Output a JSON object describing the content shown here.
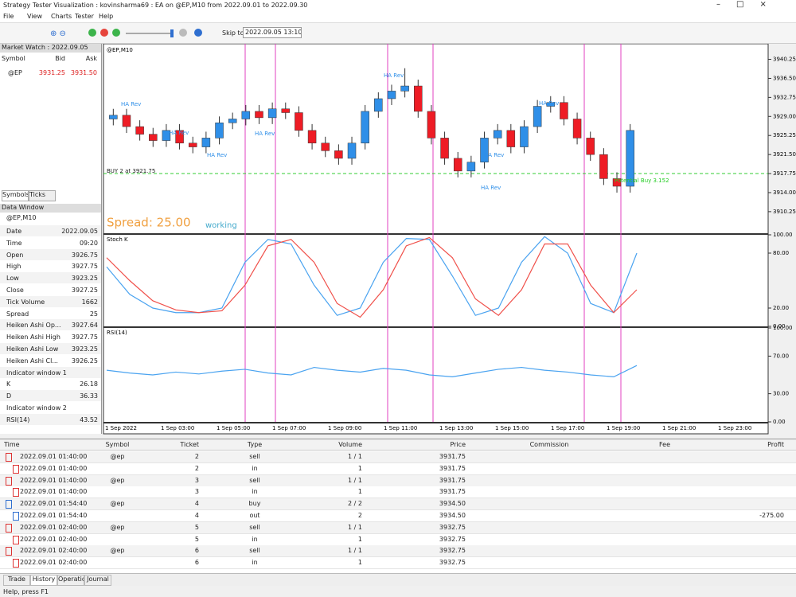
{
  "window": {
    "title": "Strategy Tester Visualization : kovinsharma69 : EA on @EP,M10 from 2022.09.01 to 2022.09.30",
    "menu": [
      "File",
      "View",
      "Charts",
      "Tester",
      "Help"
    ],
    "toolbar": {
      "skip_label": "Skip to",
      "skip_date": "2022.09.05 13:10"
    }
  },
  "market_watch": {
    "title": "Market Watch : 2022.09.05",
    "columns": [
      "Symbol",
      "Bid",
      "Ask"
    ],
    "rows": [
      [
        "@EP",
        "3931.25",
        "3931.50"
      ]
    ],
    "tabs": [
      "Symbols",
      "Ticks"
    ]
  },
  "data_window": {
    "title": "Data Window",
    "symbol": "@EP,M10",
    "rows": [
      [
        "Date",
        "2022.09.05"
      ],
      [
        "Time",
        "09:20"
      ],
      [
        "Open",
        "3926.75"
      ],
      [
        "High",
        "3927.75"
      ],
      [
        "Low",
        "3923.25"
      ],
      [
        "Close",
        "3927.25"
      ],
      [
        "Tick Volume",
        "1662"
      ],
      [
        "Spread",
        "25"
      ],
      [
        "Heiken Ashi Op...",
        "3927.64"
      ],
      [
        "Heiken Ashi High",
        "3927.75"
      ],
      [
        "Heiken Ashi Low",
        "3923.25"
      ],
      [
        "Heiken Ashi Cl...",
        "3926.25"
      ],
      [
        "Indicator window 1",
        null
      ],
      [
        "K",
        "26.18"
      ],
      [
        "D",
        "36.33"
      ],
      [
        "Indicator window 2",
        null
      ],
      [
        "RSI(14)",
        "43.52"
      ]
    ]
  },
  "chart_data": [
    {
      "type": "candlestick",
      "title": "@EP,M10",
      "bull_color": "#2f8fe8",
      "bear_color": "#ee1c25",
      "open": [
        3928.5,
        3929.25,
        3927.0,
        3925.5,
        3924.25,
        3926.25,
        3923.75,
        3923.0,
        3924.75,
        3927.75,
        3928.5,
        3930.0,
        3928.75,
        3930.5,
        3929.75,
        3926.25,
        3923.75,
        3922.25,
        3920.75,
        3923.75,
        3930.0,
        3932.5,
        3934.0,
        3935.0,
        3930.0,
        3924.75,
        3920.75,
        3918.25,
        3920.0,
        3924.75,
        3926.25,
        3923.0,
        3927.0,
        3931.0,
        3931.75,
        3928.5,
        3924.75,
        3921.5,
        3916.75,
        3915.25
      ],
      "high": [
        3930.5,
        3930.5,
        3928.25,
        3926.75,
        3927.5,
        3927.5,
        3925.0,
        3926.0,
        3929.0,
        3929.75,
        3931.25,
        3931.25,
        3931.75,
        3931.75,
        3931.0,
        3927.5,
        3925.0,
        3923.5,
        3925.0,
        3931.25,
        3933.75,
        3935.25,
        3938.5,
        3936.25,
        3931.25,
        3926.0,
        3922.0,
        3921.25,
        3926.0,
        3927.5,
        3927.5,
        3928.25,
        3932.25,
        3933.0,
        3933.0,
        3929.75,
        3926.0,
        3922.75,
        3918.0,
        3927.5
      ],
      "low": [
        3927.25,
        3925.75,
        3924.25,
        3923.0,
        3923.0,
        3922.5,
        3921.75,
        3921.75,
        3923.5,
        3926.5,
        3927.25,
        3927.5,
        3927.5,
        3928.5,
        3925.0,
        3922.5,
        3921.0,
        3919.5,
        3919.5,
        3922.5,
        3928.75,
        3931.25,
        3932.75,
        3928.75,
        3923.5,
        3919.5,
        3917.0,
        3917.0,
        3918.75,
        3923.5,
        3921.75,
        3921.75,
        3925.75,
        3929.75,
        3927.25,
        3923.5,
        3920.25,
        3915.5,
        3914.0,
        3914.0
      ],
      "close": [
        3929.25,
        3927.0,
        3925.5,
        3924.25,
        3926.25,
        3923.75,
        3923.0,
        3924.75,
        3927.75,
        3928.5,
        3930.0,
        3928.75,
        3930.5,
        3929.75,
        3926.25,
        3923.75,
        3922.25,
        3920.75,
        3923.75,
        3930.0,
        3932.5,
        3934.0,
        3935.0,
        3930.0,
        3924.75,
        3920.75,
        3918.25,
        3920.0,
        3924.75,
        3926.25,
        3923.0,
        3927.0,
        3931.0,
        3931.75,
        3928.5,
        3924.75,
        3921.5,
        3916.75,
        3915.25,
        3926.25
      ],
      "ylim": [
        3906.0,
        3943.0
      ],
      "yticks": [
        {
          "value": 3940.25,
          "label": "3940.25"
        },
        {
          "value": 3936.5,
          "label": "3936.50"
        },
        {
          "value": 3932.75,
          "label": "3932.75"
        },
        {
          "value": 3929.0,
          "label": "3929.00"
        },
        {
          "value": 3925.25,
          "label": "3925.25"
        },
        {
          "value": 3921.5,
          "label": "3921.50"
        },
        {
          "value": 3917.75,
          "label": "3917.75"
        },
        {
          "value": 3914.0,
          "label": "3914.00"
        },
        {
          "value": 3910.25,
          "label": "3910.25"
        }
      ],
      "annotations": [
        "HA Rev",
        "HA Rev",
        "HA Rev",
        "HA Rev",
        "HA Rev",
        "HA Rev",
        "HA Rev",
        "HA Rev",
        "BUY 2 at 3921.75",
        "Potential Buy 3.152",
        "Spread: 25.00",
        "working"
      ]
    },
    {
      "type": "line",
      "title": "Stoch K",
      "ylim": [
        0,
        100
      ],
      "yticks": [
        {
          "value": 100,
          "label": "100.00"
        },
        {
          "value": 80,
          "label": "80.00"
        },
        {
          "value": 20,
          "label": "20.00"
        },
        {
          "value": 0,
          "label": "0.00"
        }
      ],
      "series": [
        {
          "name": "K",
          "color": "#4aa3f0",
          "values": [
            65,
            35,
            20,
            15,
            15,
            20,
            70,
            95,
            90,
            45,
            12,
            20,
            70,
            96,
            95,
            55,
            12,
            20,
            70,
            98,
            80,
            25,
            15,
            80
          ]
        },
        {
          "name": "D",
          "color": "#f0504a",
          "values": [
            75,
            50,
            28,
            18,
            15,
            17,
            45,
            88,
            95,
            70,
            25,
            10,
            40,
            88,
            97,
            75,
            30,
            12,
            40,
            90,
            90,
            45,
            15,
            40
          ]
        }
      ]
    },
    {
      "type": "line",
      "title": "RSI(14)",
      "ylim": [
        0,
        100
      ],
      "yticks": [
        {
          "value": 100,
          "label": "100.00"
        },
        {
          "value": 70,
          "label": "70.00"
        },
        {
          "value": 30,
          "label": "30.00"
        },
        {
          "value": 0,
          "label": "0.00"
        }
      ],
      "series": [
        {
          "name": "RSI",
          "color": "#4aa3f0",
          "values": [
            55,
            52,
            50,
            53,
            51,
            54,
            56,
            52,
            50,
            58,
            55,
            53,
            57,
            55,
            50,
            48,
            52,
            56,
            58,
            55,
            53,
            50,
            48,
            60
          ]
        }
      ],
      "x_labels": [
        "1 Sep 2022",
        "1 Sep 03:00",
        "1 Sep 05:00",
        "1 Sep 07:00",
        "1 Sep 09:00",
        "1 Sep 11:00",
        "1 Sep 13:00",
        "1 Sep 15:00",
        "1 Sep 17:00",
        "1 Sep 19:00",
        "1 Sep 21:00",
        "1 Sep 23:00"
      ]
    }
  ],
  "history": {
    "columns": [
      "Time",
      "Symbol",
      "Ticket",
      "Type",
      "Volume",
      "Price",
      "Commission",
      "Fee",
      "Profit"
    ],
    "rows": [
      [
        "2022.09.01 01:40:00",
        "@ep",
        "2",
        "sell",
        "1 / 1",
        "3931.75",
        null,
        null,
        null
      ],
      [
        "2022.09.01 01:40:00",
        null,
        "2",
        "in",
        "1",
        "3931.75",
        null,
        null,
        null
      ],
      [
        "2022.09.01 01:40:00",
        "@ep",
        "3",
        "sell",
        "1 / 1",
        "3931.75",
        null,
        null,
        null
      ],
      [
        "2022.09.01 01:40:00",
        null,
        "3",
        "in",
        "1",
        "3931.75",
        null,
        null,
        null
      ],
      [
        "2022.09.01 01:54:40",
        "@ep",
        "4",
        "buy",
        "2 / 2",
        "3934.50",
        null,
        null,
        null
      ],
      [
        "2022.09.01 01:54:40",
        null,
        "4",
        "out",
        "2",
        "3934.50",
        null,
        null,
        "-275.00"
      ],
      [
        "2022.09.01 02:40:00",
        "@ep",
        "5",
        "sell",
        "1 / 1",
        "3932.75",
        null,
        null,
        null
      ],
      [
        "2022.09.01 02:40:00",
        null,
        "5",
        "in",
        "1",
        "3932.75",
        null,
        null,
        null
      ],
      [
        "2022.09.01 02:40:00",
        "@ep",
        "6",
        "sell",
        "1 / 1",
        "3932.75",
        null,
        null,
        null
      ],
      [
        "2022.09.01 02:40:00",
        null,
        "6",
        "in",
        "1",
        "3932.75",
        null,
        null,
        null
      ]
    ],
    "tabs": [
      "Trade",
      "History",
      "Operations",
      "Journal"
    ]
  },
  "status": "Help, press F1"
}
